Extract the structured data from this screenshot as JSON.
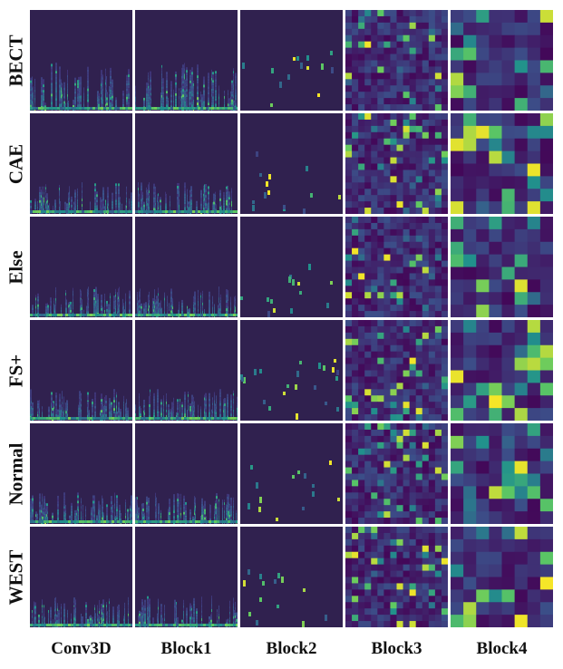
{
  "rows": [
    "BECT",
    "CAE",
    "Else",
    "FS+",
    "Normal",
    "WEST"
  ],
  "columns": [
    "Conv3D",
    "Block1",
    "Block2",
    "Block3",
    "Block4"
  ],
  "colormap": [
    "#440154",
    "#3b528b",
    "#21918c",
    "#5ec962",
    "#fde725"
  ],
  "panel_background": "#30214f"
}
